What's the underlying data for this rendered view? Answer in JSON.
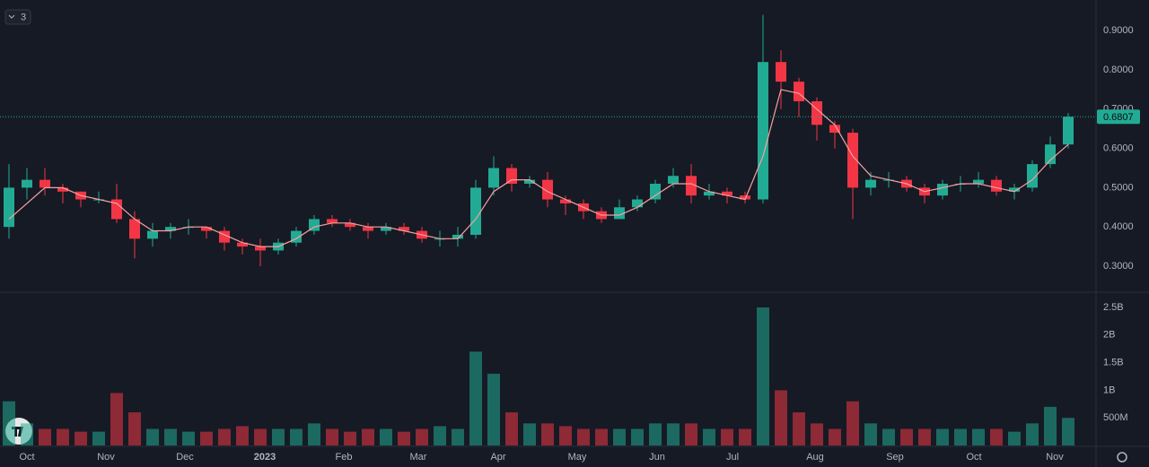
{
  "legend_toggle": "3",
  "chart_data": {
    "type": "candlestick",
    "categories": [
      null,
      null,
      null,
      null,
      null,
      null,
      null,
      null,
      null,
      null,
      null,
      null,
      null,
      null,
      null,
      null,
      null,
      null,
      null,
      null,
      null,
      null,
      null,
      null,
      null,
      null,
      null,
      null,
      null,
      null,
      null,
      null,
      null,
      null,
      null,
      null,
      null,
      null,
      null,
      null,
      null,
      null,
      null,
      null,
      null,
      null,
      null,
      null,
      null,
      null,
      null,
      null,
      null,
      null,
      null,
      null,
      null,
      null,
      null,
      null
    ],
    "open": [
      0.4,
      0.5,
      0.52,
      0.5,
      0.49,
      0.47,
      0.47,
      0.42,
      0.37,
      0.39,
      0.4,
      0.4,
      0.39,
      0.36,
      0.35,
      0.34,
      0.36,
      0.39,
      0.42,
      0.41,
      0.4,
      0.39,
      0.4,
      0.39,
      0.37,
      0.37,
      0.38,
      0.5,
      0.55,
      0.51,
      0.52,
      0.47,
      0.46,
      0.44,
      0.42,
      0.45,
      0.47,
      0.51,
      0.53,
      0.48,
      0.49,
      0.48,
      0.47,
      0.82,
      0.77,
      0.72,
      0.66,
      0.64,
      0.5,
      0.52,
      0.52,
      0.5,
      0.48,
      0.51,
      0.51,
      0.52,
      0.49,
      0.5,
      0.56,
      0.61
    ],
    "high": [
      0.56,
      0.55,
      0.55,
      0.51,
      0.49,
      0.49,
      0.51,
      0.44,
      0.41,
      0.41,
      0.42,
      0.4,
      0.4,
      0.37,
      0.37,
      0.37,
      0.4,
      0.43,
      0.43,
      0.42,
      0.41,
      0.41,
      0.41,
      0.4,
      0.39,
      0.4,
      0.52,
      0.58,
      0.56,
      0.53,
      0.54,
      0.48,
      0.47,
      0.45,
      0.47,
      0.48,
      0.52,
      0.55,
      0.56,
      0.51,
      0.5,
      0.49,
      0.94,
      0.85,
      0.78,
      0.73,
      0.67,
      0.65,
      0.54,
      0.54,
      0.53,
      0.51,
      0.52,
      0.53,
      0.54,
      0.53,
      0.51,
      0.57,
      0.63,
      0.69
    ],
    "low": [
      0.37,
      0.47,
      0.48,
      0.46,
      0.45,
      0.46,
      0.41,
      0.32,
      0.35,
      0.37,
      0.38,
      0.37,
      0.34,
      0.33,
      0.3,
      0.33,
      0.35,
      0.38,
      0.4,
      0.39,
      0.37,
      0.38,
      0.38,
      0.36,
      0.35,
      0.35,
      0.37,
      0.48,
      0.49,
      0.5,
      0.45,
      0.43,
      0.42,
      0.41,
      0.42,
      0.44,
      0.46,
      0.5,
      0.46,
      0.47,
      0.46,
      0.46,
      0.46,
      0.7,
      0.68,
      0.62,
      0.6,
      0.42,
      0.48,
      0.5,
      0.49,
      0.46,
      0.47,
      0.49,
      0.5,
      0.48,
      0.47,
      0.49,
      0.55,
      0.6
    ],
    "close": [
      0.5,
      0.52,
      0.5,
      0.49,
      0.47,
      0.47,
      0.42,
      0.37,
      0.39,
      0.4,
      0.4,
      0.39,
      0.36,
      0.35,
      0.34,
      0.36,
      0.39,
      0.42,
      0.41,
      0.4,
      0.39,
      0.4,
      0.39,
      0.37,
      0.37,
      0.38,
      0.5,
      0.55,
      0.51,
      0.52,
      0.47,
      0.46,
      0.44,
      0.42,
      0.45,
      0.47,
      0.51,
      0.53,
      0.48,
      0.49,
      0.48,
      0.47,
      0.82,
      0.77,
      0.72,
      0.66,
      0.64,
      0.5,
      0.52,
      0.52,
      0.5,
      0.48,
      0.51,
      0.51,
      0.52,
      0.49,
      0.5,
      0.56,
      0.61,
      0.6807
    ],
    "ma": [
      0.42,
      0.46,
      0.5,
      0.5,
      0.48,
      0.47,
      0.46,
      0.42,
      0.39,
      0.39,
      0.4,
      0.4,
      0.38,
      0.36,
      0.35,
      0.35,
      0.37,
      0.4,
      0.41,
      0.41,
      0.4,
      0.4,
      0.39,
      0.38,
      0.37,
      0.37,
      0.42,
      0.49,
      0.52,
      0.52,
      0.49,
      0.47,
      0.45,
      0.43,
      0.43,
      0.45,
      0.48,
      0.51,
      0.51,
      0.49,
      0.48,
      0.47,
      0.58,
      0.75,
      0.74,
      0.7,
      0.66,
      0.58,
      0.53,
      0.52,
      0.51,
      0.49,
      0.5,
      0.51,
      0.51,
      0.5,
      0.49,
      0.52,
      0.57,
      0.61
    ],
    "volume": [
      800000000.0,
      400000000.0,
      300000000.0,
      300000000.0,
      250000000.0,
      250000000.0,
      950000000.0,
      600000000.0,
      300000000.0,
      300000000.0,
      250000000.0,
      250000000.0,
      300000000.0,
      350000000.0,
      300000000.0,
      300000000.0,
      300000000.0,
      400000000.0,
      300000000.0,
      250000000.0,
      300000000.0,
      300000000.0,
      250000000.0,
      300000000.0,
      350000000.0,
      300000000.0,
      1700000000.0,
      1300000000.0,
      600000000.0,
      400000000.0,
      400000000.0,
      350000000.0,
      300000000.0,
      300000000.0,
      300000000.0,
      300000000.0,
      400000000.0,
      400000000.0,
      400000000.0,
      300000000.0,
      300000000.0,
      300000000.0,
      2500000000.0,
      1000000000.0,
      600000000.0,
      400000000.0,
      300000000.0,
      800000000.0,
      400000000.0,
      300000000.0,
      300000000.0,
      300000000.0,
      300000000.0,
      300000000.0,
      300000000.0,
      300000000.0,
      250000000.0,
      400000000.0,
      700000000.0,
      500000000.0
    ],
    "up_color": "#22ab94",
    "down_color": "#f23645",
    "ma_color": "#f7a1a1",
    "ylim": [
      0.236,
      0.978
    ],
    "yticks": [
      {
        "value": 0.3,
        "label": "0.3000"
      },
      {
        "value": 0.4,
        "label": "0.4000"
      },
      {
        "value": 0.5,
        "label": "0.5000"
      },
      {
        "value": 0.6,
        "label": "0.6000"
      },
      {
        "value": 0.7,
        "label": "0.7000"
      },
      {
        "value": 0.8,
        "label": "0.8000"
      },
      {
        "value": 0.9,
        "label": "0.9000"
      }
    ],
    "y2lim": [
      0,
      2760000000.0
    ],
    "y2ticks": [
      {
        "value": 500000000.0,
        "label": "500M"
      },
      {
        "value": 1000000000.0,
        "label": "1B"
      },
      {
        "value": 1500000000.0,
        "label": "1.5B"
      },
      {
        "value": 2000000000.0,
        "label": "2B"
      },
      {
        "value": 2500000000.0,
        "label": "2.5B"
      }
    ],
    "xtick_labels": [
      "Oct",
      "Nov",
      "Dec",
      "2023",
      "Feb",
      "Mar",
      "Apr",
      "May",
      "Jun",
      "Jul",
      "Aug",
      "Sep",
      "Oct",
      "Nov"
    ]
  }
}
